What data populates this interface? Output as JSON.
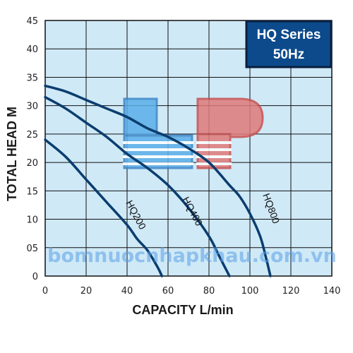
{
  "chart_data": {
    "type": "line",
    "title": "",
    "xlabel": "CAPACITY L/min",
    "ylabel": "TOTAL HEAD M",
    "xlim": [
      0,
      140
    ],
    "ylim": [
      0,
      45
    ],
    "x_ticks": [
      "0",
      "20",
      "40",
      "60",
      "80",
      "100",
      "120",
      "140"
    ],
    "y_ticks": [
      "0",
      "05",
      "10",
      "15",
      "20",
      "25",
      "30",
      "35",
      "40",
      "45"
    ],
    "grid": true,
    "legend": "none",
    "series": [
      {
        "name": "HQ200",
        "x": [
          0,
          10,
          20,
          30,
          40,
          45,
          50,
          55,
          57
        ],
        "y": [
          24,
          21,
          17,
          13,
          9,
          6.5,
          4.5,
          1.5,
          0
        ]
      },
      {
        "name": "HQ400",
        "x": [
          0,
          10,
          20,
          30,
          40,
          50,
          60,
          70,
          80,
          85,
          90
        ],
        "y": [
          31.5,
          29.5,
          27,
          24.5,
          21.5,
          19,
          16,
          12,
          7,
          3.5,
          0
        ]
      },
      {
        "name": "HQ800",
        "x": [
          0,
          10,
          20,
          30,
          40,
          50,
          60,
          70,
          80,
          90,
          95,
          100,
          105,
          108,
          110
        ],
        "y": [
          33.5,
          32.5,
          31,
          29.5,
          28,
          26,
          24.5,
          22.5,
          20,
          16,
          14,
          11,
          7,
          3,
          0
        ]
      }
    ],
    "colors": {
      "line": "#0b3d6e",
      "plot_bg": "#cfe9f7",
      "grid": "#111111",
      "badge_bg": "#0c4a8c",
      "badge_border": "#0a1f3d"
    }
  },
  "badge": {
    "line1": "HQ Series",
    "line2": "50Hz"
  },
  "watermark": {
    "text": "bomnuocnhapkhau.com.vn"
  },
  "logo": {
    "text": "LP",
    "left_color": "#5aaee8",
    "right_color": "#e06a6a"
  }
}
